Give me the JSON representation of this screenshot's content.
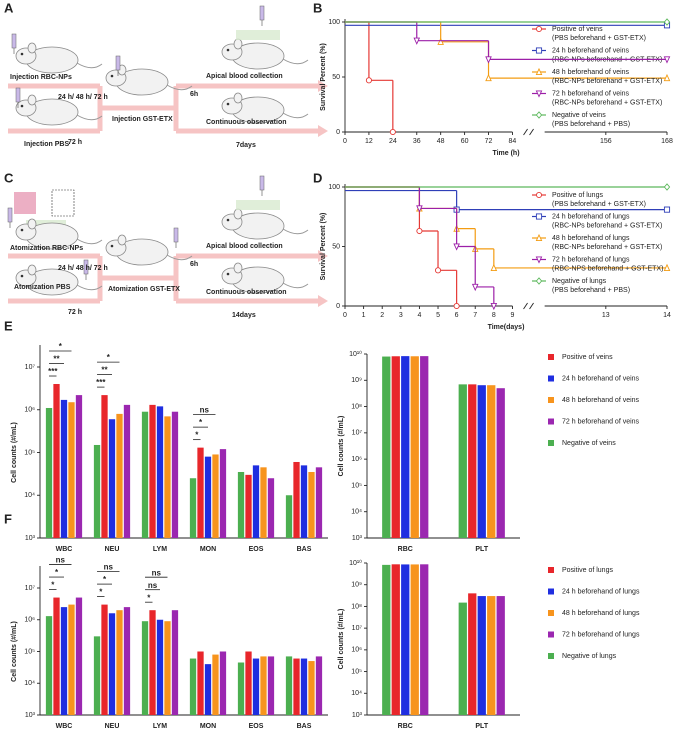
{
  "panel_labels": [
    "A",
    "B",
    "C",
    "D",
    "E",
    "F"
  ],
  "schematic_a": {
    "step1_top": "Injection RBC-NPs",
    "interval_top": "24 h/ 48 h/ 72 h",
    "step1_bottom": "Injection PBS",
    "interval_bottom": "72 h",
    "step2": "Injection GST-ETX",
    "interval_2": "6h",
    "outcome_top": "Apical blood collection",
    "outcome_bottom": "Continuous observation",
    "duration_bottom": "7days"
  },
  "schematic_c": {
    "step1_top": "Atomization RBC-NPs",
    "interval_top": "24 h/ 48 h/ 72 h",
    "step1_bottom": "Atomization PBS",
    "interval_bottom": "72 h",
    "step2": "Atomization GST-ETX",
    "interval_2": "6h",
    "outcome_top": "Apical blood collection",
    "outcome_bottom": "Continuous observation",
    "duration_bottom": "14days"
  },
  "chart_data": [
    {
      "type": "survival",
      "xlabel": "Time (h)",
      "ylabel": "Survival Percent (%)",
      "broken_x_axis": true,
      "xlim": [
        0,
        168
      ],
      "xticks": [
        0,
        12,
        24,
        36,
        48,
        60,
        72,
        84,
        156,
        168
      ],
      "ylim": [
        0,
        100
      ],
      "yticks": [
        0,
        50,
        100
      ],
      "series": [
        {
          "name": "Positive of veins",
          "condition": "(PBS beforehand + GST-ETX)",
          "color": "#e53935",
          "marker": "circle",
          "x": [
            0,
            12,
            24
          ],
          "values": [
            100,
            47,
            0
          ]
        },
        {
          "name": "24 h beforehand of veins",
          "condition": "(RBC-NPs beforehand + GST-ETX)",
          "color": "#2f3fb8",
          "marker": "square",
          "x": [
            0,
            168
          ],
          "values": [
            97,
            97
          ]
        },
        {
          "name": "48 h beforehand of veins",
          "condition": "(RBC-NPs beforehand + GST-ETX)",
          "color": "#f39c12",
          "marker": "triangle",
          "x": [
            0,
            48,
            72,
            168
          ],
          "values": [
            100,
            82,
            49,
            49
          ]
        },
        {
          "name": "72 h beforehand of veins",
          "condition": "(RBC-NPs beforehand + GST-ETX)",
          "color": "#9c1fa8",
          "marker": "triangle-down",
          "x": [
            0,
            36,
            72,
            168
          ],
          "values": [
            100,
            83,
            66,
            66
          ]
        },
        {
          "name": "Negative of veins",
          "condition": "(PBS beforehand + PBS)",
          "color": "#5cb85c",
          "marker": "diamond",
          "x": [
            0,
            168
          ],
          "values": [
            100,
            100
          ]
        }
      ]
    },
    {
      "type": "survival",
      "xlabel": "Time(days)",
      "ylabel": "Survival Percent (%)",
      "broken_x_axis": true,
      "xlim": [
        0,
        14
      ],
      "xticks": [
        0,
        1,
        2,
        3,
        4,
        5,
        6,
        7,
        8,
        9,
        13,
        14
      ],
      "ylim": [
        0,
        100
      ],
      "yticks": [
        0,
        50,
        100
      ],
      "series": [
        {
          "name": "Positive of lungs",
          "condition": "(PBS beforehand + GST-ETX)",
          "color": "#e53935",
          "marker": "circle",
          "x": [
            0,
            4,
            5,
            6
          ],
          "values": [
            100,
            63,
            30,
            0
          ]
        },
        {
          "name": "24 h beforehand of lungs",
          "condition": "(RBC-NPs beforehand + GST-ETX)",
          "color": "#2f3fb8",
          "marker": "square",
          "x": [
            0,
            6,
            14
          ],
          "values": [
            97,
            81,
            81
          ]
        },
        {
          "name": "48 h beforehand of lungs",
          "condition": "(RBC-NPs beforehand + GST-ETX)",
          "color": "#f39c12",
          "marker": "triangle",
          "x": [
            0,
            4,
            6,
            7,
            8,
            14
          ],
          "values": [
            100,
            82,
            65,
            48,
            32,
            32
          ]
        },
        {
          "name": "72 h beforehand of lungs",
          "condition": "(RBC-NPS beforehand + GST-ETX)",
          "color": "#9c1fa8",
          "marker": "triangle-down",
          "x": [
            0,
            4,
            6,
            7,
            8
          ],
          "values": [
            100,
            82,
            50,
            16,
            0
          ]
        },
        {
          "name": "Negative of lungs",
          "condition": "(PBS beforehand + PBS)",
          "color": "#5cb85c",
          "marker": "diamond",
          "x": [
            0,
            14
          ],
          "values": [
            100,
            100
          ]
        }
      ]
    },
    {
      "type": "bar",
      "log_y": true,
      "ylabel": "Cell counts (#/mL)",
      "categories": [
        "WBC",
        "NEU",
        "LYM",
        "MON",
        "EOS",
        "BAS"
      ],
      "ylim": [
        1000,
        10000000
      ],
      "yticks": [
        {
          "value": 1000,
          "label": "10³"
        },
        {
          "value": 10000,
          "label": "10⁴"
        },
        {
          "value": 100000,
          "label": "10⁵"
        },
        {
          "value": 1000000,
          "label": "10⁶"
        },
        {
          "value": 10000000,
          "label": "10⁷"
        }
      ],
      "significance": [
        [
          "***",
          "**",
          "*"
        ],
        [
          "***",
          "**",
          "*"
        ],
        [],
        [
          "*",
          "*",
          "ns"
        ],
        [],
        []
      ],
      "series": [
        {
          "name": "Positive of veins",
          "color": "#e8262b",
          "values": [
            4000000,
            2200000,
            1300000,
            130000,
            30000,
            60000
          ]
        },
        {
          "name": "24 h beforehand of veins",
          "color": "#1f2ee0",
          "values": [
            1700000,
            600000,
            1200000,
            80000,
            50000,
            50000
          ]
        },
        {
          "name": "48 h beforehand of veins",
          "color": "#f7941d",
          "values": [
            1500000,
            800000,
            700000,
            90000,
            45000,
            35000
          ]
        },
        {
          "name": "72 h beforehand of veins",
          "color": "#9b27b0",
          "values": [
            2200000,
            1300000,
            900000,
            120000,
            25000,
            45000
          ]
        },
        {
          "name": "Negative of veins",
          "color": "#4caf50",
          "values": [
            1100000,
            150000,
            900000,
            25000,
            35000,
            10000
          ]
        }
      ]
    },
    {
      "type": "bar",
      "log_y": true,
      "ylabel": "Cell counts (#/mL)",
      "categories": [
        "RBC",
        "PLT"
      ],
      "ylim": [
        1000,
        10000000000
      ],
      "yticks": [
        {
          "value": 1000,
          "label": "10³"
        },
        {
          "value": 10000,
          "label": "10⁴"
        },
        {
          "value": 100000,
          "label": "10⁵"
        },
        {
          "value": 1000000,
          "label": "10⁶"
        },
        {
          "value": 10000000,
          "label": "10⁷"
        },
        {
          "value": 100000000,
          "label": "10⁸"
        },
        {
          "value": 1000000000,
          "label": "10⁹"
        },
        {
          "value": 10000000000,
          "label": "10¹⁰"
        }
      ],
      "series": [
        {
          "color": "#e8262b",
          "values": [
            8200000000,
            700000000
          ]
        },
        {
          "color": "#1f2ee0",
          "values": [
            8300000000,
            650000000
          ]
        },
        {
          "color": "#f7941d",
          "values": [
            8200000000,
            650000000
          ]
        },
        {
          "color": "#9b27b0",
          "values": [
            8300000000,
            500000000
          ]
        },
        {
          "color": "#4caf50",
          "values": [
            8000000000,
            700000000
          ]
        }
      ]
    },
    {
      "type": "bar",
      "log_y": true,
      "ylabel": "Cell counts (#/mL)",
      "categories": [
        "WBC",
        "NEU",
        "LYM",
        "MON",
        "EOS",
        "BAS"
      ],
      "ylim": [
        1000,
        10000000
      ],
      "yticks": [
        {
          "value": 1000,
          "label": "10³"
        },
        {
          "value": 10000,
          "label": "10⁴"
        },
        {
          "value": 100000,
          "label": "10⁵"
        },
        {
          "value": 1000000,
          "label": "10⁶"
        },
        {
          "value": 10000000,
          "label": "10⁷"
        }
      ],
      "significance": [
        [
          "*",
          "*",
          "ns"
        ],
        [
          "*",
          "*",
          "ns"
        ],
        [
          "*",
          "ns",
          "ns"
        ],
        [],
        [],
        []
      ],
      "series": [
        {
          "name": "Positive of lungs",
          "color": "#e8262b",
          "values": [
            5000000,
            3000000,
            2000000,
            100000,
            100000,
            60000
          ]
        },
        {
          "name": "24 h beforehand of lungs",
          "color": "#1f2ee0",
          "values": [
            2500000,
            1600000,
            1000000,
            40000,
            60000,
            60000
          ]
        },
        {
          "name": "48 h beforehand of lungs",
          "color": "#f7941d",
          "values": [
            3000000,
            2000000,
            900000,
            80000,
            70000,
            50000
          ]
        },
        {
          "name": "72 h beforehand of lungs",
          "color": "#9b27b0",
          "values": [
            5000000,
            2500000,
            2000000,
            100000,
            70000,
            70000
          ]
        },
        {
          "name": "Negative of lungs",
          "color": "#4caf50",
          "values": [
            1300000,
            300000,
            900000,
            60000,
            45000,
            70000
          ]
        }
      ]
    },
    {
      "type": "bar",
      "log_y": true,
      "ylabel": "Cell counts (#/mL)",
      "categories": [
        "RBC",
        "PLT"
      ],
      "ylim": [
        1000,
        10000000000
      ],
      "yticks": [
        {
          "value": 1000,
          "label": "10³"
        },
        {
          "value": 10000,
          "label": "10⁴"
        },
        {
          "value": 100000,
          "label": "10⁵"
        },
        {
          "value": 1000000,
          "label": "10⁶"
        },
        {
          "value": 10000000,
          "label": "10⁷"
        },
        {
          "value": 100000000,
          "label": "10⁸"
        },
        {
          "value": 1000000000,
          "label": "10⁹"
        },
        {
          "value": 10000000000,
          "label": "10¹⁰"
        }
      ],
      "series": [
        {
          "color": "#e8262b",
          "values": [
            8700000000,
            400000000
          ]
        },
        {
          "color": "#1f2ee0",
          "values": [
            8600000000,
            300000000
          ]
        },
        {
          "color": "#f7941d",
          "values": [
            8600000000,
            300000000
          ]
        },
        {
          "color": "#9b27b0",
          "values": [
            8700000000,
            300000000
          ]
        },
        {
          "color": "#4caf50",
          "values": [
            8200000000,
            150000000
          ]
        }
      ]
    }
  ]
}
